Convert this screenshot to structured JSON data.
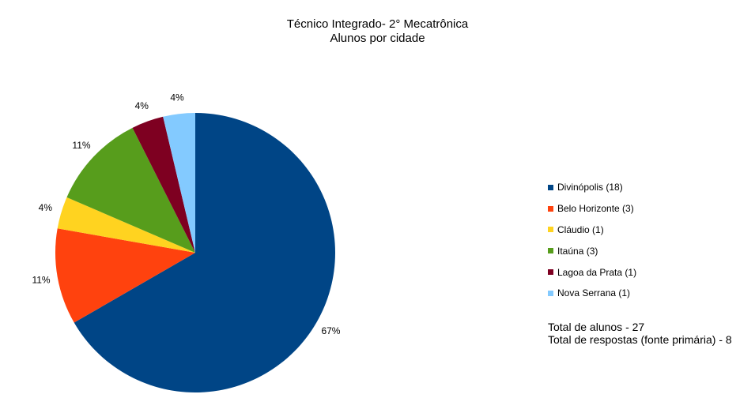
{
  "chart_data": {
    "type": "pie",
    "title": "Técnico Integrado- 2° Mecatrônica",
    "subtitle": "Alunos por cidade",
    "categories": [
      "Divinópolis (18)",
      "Belo Horizonte (3)",
      "Cláudio (1)",
      "Itaúna (3)",
      "Lagoa da Prata (1)",
      "Nova Serrana (1)"
    ],
    "values": [
      18,
      3,
      1,
      3,
      1,
      1
    ],
    "data_labels": [
      "67%",
      "11%",
      "4%",
      "11%",
      "4%",
      "4%"
    ],
    "colors": [
      "#004586",
      "#ff420e",
      "#ffd320",
      "#579d1c",
      "#7e0021",
      "#83caff"
    ],
    "legend_position": "right",
    "start_angle_deg": 0,
    "direction": "clockwise"
  },
  "notes": {
    "line1": "Total de alunos - 27",
    "line2": "Total de respostas (fonte primária) - 8"
  }
}
